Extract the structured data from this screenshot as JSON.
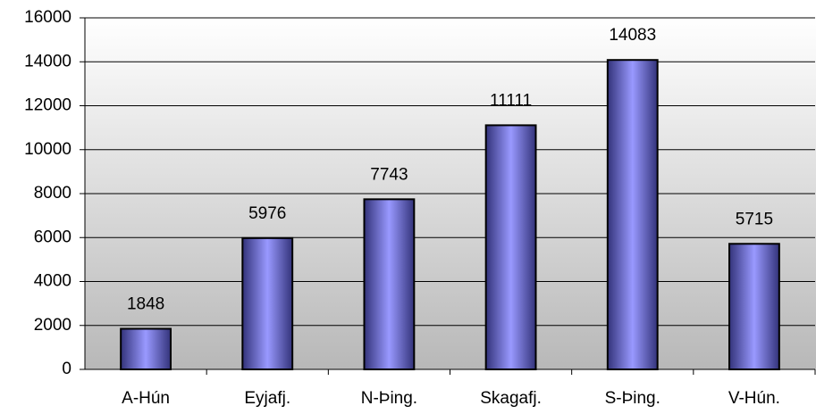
{
  "chart_data": {
    "type": "bar",
    "categories": [
      "A-Hún",
      "Eyjafj.",
      "N-Þing.",
      "Skagafj.",
      "S-Þing.",
      "V-Hún."
    ],
    "values": [
      1848,
      5976,
      7743,
      11111,
      14083,
      5715
    ],
    "color": "#9999ff",
    "ylim": [
      0,
      16000
    ],
    "yticks": [
      0,
      2000,
      4000,
      6000,
      8000,
      10000,
      12000,
      14000,
      16000
    ],
    "grid": true
  }
}
